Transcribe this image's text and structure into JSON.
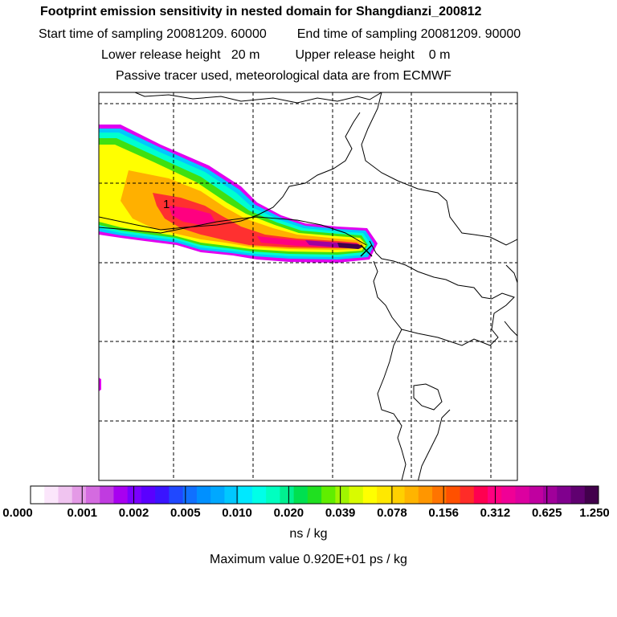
{
  "header": {
    "title": "Footprint emission sensitivity in nested domain for Shangdianzi_200812",
    "start_label": "Start time of sampling 20081209. 60000",
    "end_label": "End time of sampling 20081209. 90000",
    "lower_label": "Lower release height   20 m",
    "upper_label": "Upper release height    0 m",
    "tracer_line": "Passive tracer used, meteorological data are from ECMWF"
  },
  "chart_data": {
    "type": "heatmap",
    "title": "Footprint emission sensitivity in nested domain for Shangdianzi_200812",
    "plume_marker_label": "1",
    "receptor_marker": "cross",
    "grid": true,
    "colorbar": {
      "tick_labels": [
        "0.000",
        "0.001",
        "0.002",
        "0.005",
        "0.010",
        "0.020",
        "0.039",
        "0.078",
        "0.156",
        "0.312",
        "0.625",
        "1.250"
      ],
      "colors": [
        "#ffffff",
        "#fbe6fb",
        "#f0c4f0",
        "#e49ae6",
        "#d46be0",
        "#c03be0",
        "#a800f0",
        "#7a00ff",
        "#5a00ff",
        "#3a14ff",
        "#2048ff",
        "#1070ff",
        "#0090ff",
        "#00a8ff",
        "#00c8ff",
        "#00e8ff",
        "#00ffe8",
        "#00ffc0",
        "#00f090",
        "#00e050",
        "#20e020",
        "#60ee00",
        "#a0f500",
        "#d8fb00",
        "#ffff00",
        "#ffe800",
        "#ffd000",
        "#ffb400",
        "#ff9600",
        "#ff7400",
        "#ff5000",
        "#ff2c28",
        "#ff0050",
        "#ff0080",
        "#f00096",
        "#dc00a0",
        "#c000a0",
        "#a0009a",
        "#80008e",
        "#600070",
        "#42004c"
      ],
      "unit_label": "ns / kg"
    },
    "max_value_label": "Maximum value  0.920E+01 ps / kg"
  }
}
